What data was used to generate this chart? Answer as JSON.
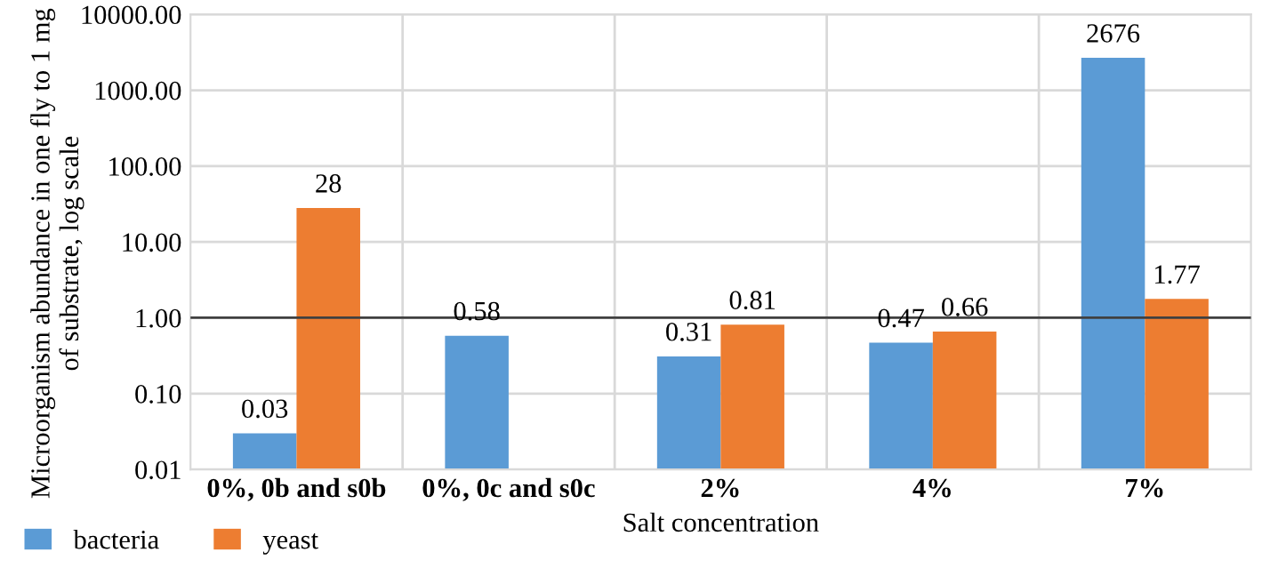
{
  "chart_data": {
    "type": "bar",
    "xlabel": "Salt concentration",
    "ylabel": "Microorganism abundance in one fly to 1 mg of substrate, log scale",
    "categories": [
      "0%, 0b and s0b",
      "0%, 0c and s0c",
      "2%",
      "4%",
      "7%"
    ],
    "series": [
      {
        "name": "bacteria",
        "color": "#5b9bd5",
        "values": [
          0.03,
          0.58,
          0.31,
          0.47,
          2676
        ]
      },
      {
        "name": "yeast",
        "color": "#ed7d31",
        "values": [
          28,
          null,
          0.81,
          0.66,
          1.77
        ]
      }
    ],
    "log": "y",
    "ylim": [
      0.01,
      10000
    ],
    "yticks": [
      {
        "value": 0.01,
        "label": "0.01"
      },
      {
        "value": 0.1,
        "label": "0.10"
      },
      {
        "value": 1,
        "label": "1.00"
      },
      {
        "value": 10,
        "label": "10.00"
      },
      {
        "value": 100,
        "label": "100.00"
      },
      {
        "value": 1000,
        "label": "1000.00"
      },
      {
        "value": 10000,
        "label": "10000.00"
      }
    ],
    "ref_lines": [
      {
        "axis": "y",
        "value": 1,
        "color": "#404040"
      }
    ],
    "grid": true,
    "legend": "bottom left",
    "data_labels": true
  }
}
